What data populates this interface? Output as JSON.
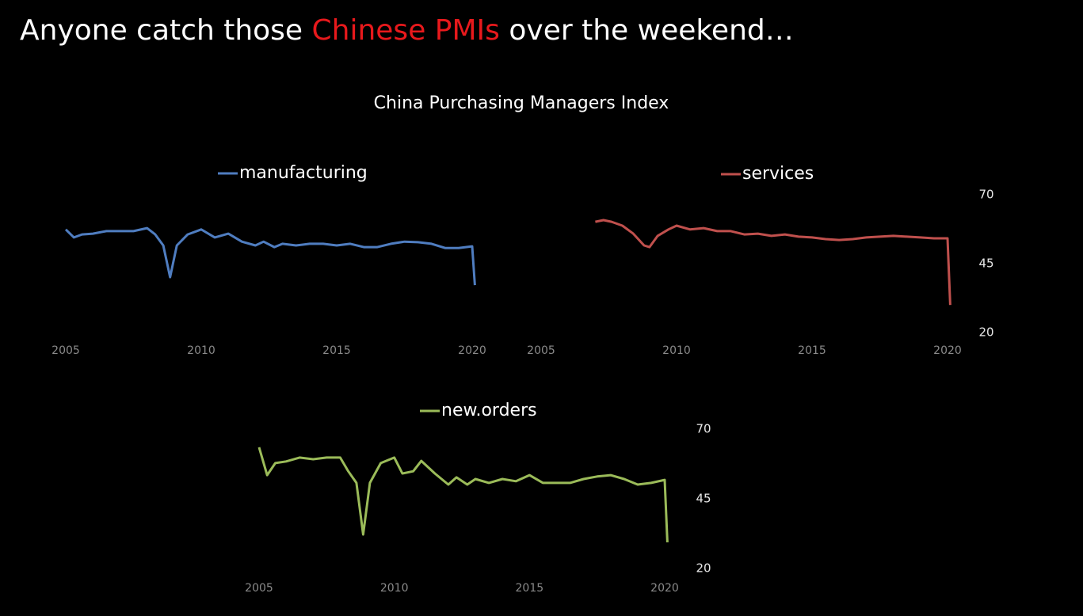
{
  "title": [
    "Anyone catch those ",
    "Chinese PMIs",
    " over the weekend…"
  ],
  "subtitle": "China Purchasing Managers Index",
  "chart_data": [
    {
      "type": "line",
      "x": [
        2005.0,
        2005.3,
        2005.6,
        2006.0,
        2006.5,
        2007.0,
        2007.5,
        2008.0,
        2008.3,
        2008.6,
        2008.85,
        2009.1,
        2009.5,
        2010.0,
        2010.5,
        2011.0,
        2011.5,
        2012.0,
        2012.3,
        2012.7,
        2013.0,
        2013.5,
        2014.0,
        2014.5,
        2015.0,
        2015.5,
        2016.0,
        2016.5,
        2017.0,
        2017.5,
        2018.0,
        2018.5,
        2019.0,
        2019.5,
        2020.0,
        2020.1
      ],
      "series": [
        {
          "name": "manufacturing",
          "color": "#4f7dc0",
          "values": [
            57.4,
            54.5,
            55.6,
            55.9,
            56.8,
            56.8,
            56.8,
            57.9,
            55.6,
            51.6,
            40.1,
            51.6,
            55.6,
            57.4,
            54.5,
            55.9,
            53,
            51.6,
            53,
            51,
            52.2,
            51.6,
            52.2,
            52.2,
            51.6,
            52.2,
            51,
            51,
            52.2,
            53,
            52.8,
            52.2,
            50.7,
            50.7,
            51.3,
            37.2
          ]
        }
      ],
      "xlim": [
        2005,
        2020
      ],
      "xticks": [
        2005,
        2010,
        2015,
        2020
      ],
      "ylim": [
        20,
        70
      ]
    },
    {
      "type": "line",
      "x": [
        2007.0,
        2007.3,
        2007.6,
        2008.0,
        2008.4,
        2008.8,
        2009.0,
        2009.3,
        2009.7,
        2010.0,
        2010.5,
        2011.0,
        2011.5,
        2012.0,
        2012.5,
        2013.0,
        2013.5,
        2014.0,
        2014.5,
        2015.0,
        2015.5,
        2016.0,
        2016.5,
        2017.0,
        2017.5,
        2018.0,
        2018.5,
        2019.0,
        2019.5,
        2020.0,
        2020.1
      ],
      "series": [
        {
          "name": "services",
          "color": "#c0504d",
          "values": [
            60.2,
            60.8,
            60.2,
            58.8,
            55.9,
            51.6,
            51,
            55.1,
            57.4,
            58.8,
            57.4,
            57.9,
            56.8,
            56.8,
            55.6,
            55.9,
            55.1,
            55.6,
            54.8,
            54.5,
            53.9,
            53.6,
            53.9,
            54.5,
            54.8,
            55.1,
            54.8,
            54.5,
            54.2,
            54.2,
            30
          ]
        }
      ],
      "xlim": [
        2005,
        2020
      ],
      "xticks": [
        2005,
        2010,
        2015,
        2020
      ],
      "ylim": [
        20,
        70
      ],
      "yticks": [
        20,
        45,
        70
      ]
    },
    {
      "type": "line",
      "x": [
        2005.0,
        2005.3,
        2005.6,
        2006.0,
        2006.5,
        2007.0,
        2007.5,
        2008.0,
        2008.3,
        2008.6,
        2008.85,
        2009.1,
        2009.5,
        2010.0,
        2010.3,
        2010.7,
        2011.0,
        2011.5,
        2012.0,
        2012.3,
        2012.7,
        2013.0,
        2013.5,
        2014.0,
        2014.5,
        2015.0,
        2015.5,
        2016.0,
        2016.5,
        2017.0,
        2017.5,
        2018.0,
        2018.5,
        2019.0,
        2019.5,
        2020.0,
        2020.1
      ],
      "series": [
        {
          "name": "new.orders",
          "color": "#9bbb59",
          "values": [
            63.5,
            53.5,
            57.8,
            58.4,
            59.8,
            59.2,
            59.8,
            59.8,
            54.9,
            50.7,
            32.2,
            50.7,
            57.8,
            59.8,
            54.1,
            54.9,
            58.6,
            54.1,
            50.1,
            52.7,
            50.1,
            52.1,
            50.7,
            52.1,
            51.3,
            53.5,
            50.7,
            50.7,
            50.7,
            52.1,
            53,
            53.5,
            52.1,
            50.1,
            50.7,
            51.8,
            29.4
          ]
        }
      ],
      "xlim": [
        2005,
        2020
      ],
      "xticks": [
        2005,
        2010,
        2015,
        2020
      ],
      "ylim": [
        20,
        70
      ],
      "yticks": [
        20,
        45,
        70
      ]
    }
  ]
}
